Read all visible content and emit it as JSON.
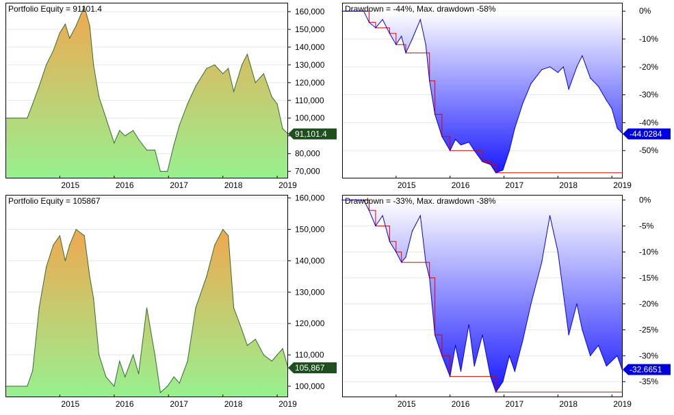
{
  "colors": {
    "equity_top": "#f0a850",
    "equity_bottom": "#98f090",
    "equity_line": "#2e6e2e",
    "equity_badge": "#1f4e1f",
    "drawdown_line": "#0000ee",
    "drawdown_fill_top": "#ffffff",
    "drawdown_fill_bottom": "#1a1aff",
    "drawdown_badge": "#0000dd",
    "maxdd_line": "#dd0000",
    "grid": "#e6e6e6"
  },
  "chart_data": [
    {
      "id": "eq1",
      "type": "area",
      "title": "Portfolio Equity = 91101.4",
      "ylim": [
        66000,
        165000
      ],
      "y_ticks": [
        70000,
        80000,
        90000,
        100000,
        110000,
        120000,
        130000,
        140000,
        150000,
        160000
      ],
      "y_tick_labels": [
        "70,000",
        "80,000",
        "90,000",
        "100,000",
        "110,000",
        "120,000",
        "130,000",
        "140,000",
        "150,000",
        "160,000"
      ],
      "x_ticks": [
        2015,
        2016,
        2017,
        2018,
        2019
      ],
      "x_tick_labels": [
        "2015",
        "2016",
        "2017",
        "2018",
        "2019"
      ],
      "xlim": [
        2014.0,
        2019.2
      ],
      "last_value_label": "91,101.4",
      "last_value": 91101.4,
      "x": [
        2014.0,
        2014.4,
        2014.5,
        2014.62,
        2014.75,
        2014.88,
        2015.0,
        2015.1,
        2015.18,
        2015.3,
        2015.45,
        2015.55,
        2015.62,
        2015.72,
        2015.85,
        2016.0,
        2016.1,
        2016.2,
        2016.35,
        2016.45,
        2016.6,
        2016.75,
        2016.85,
        2016.98,
        2017.1,
        2017.2,
        2017.35,
        2017.5,
        2017.7,
        2017.85,
        2018.0,
        2018.1,
        2018.2,
        2018.35,
        2018.45,
        2018.6,
        2018.75,
        2018.9,
        2019.0,
        2019.1,
        2019.2
      ],
      "y": [
        100000,
        100000,
        108000,
        118000,
        130000,
        138000,
        148000,
        153000,
        145000,
        152000,
        163000,
        152000,
        130000,
        112000,
        100000,
        86000,
        93000,
        90000,
        93000,
        88000,
        82000,
        82000,
        70000,
        70000,
        85000,
        96000,
        108000,
        118000,
        128000,
        130000,
        125000,
        128000,
        115000,
        130000,
        136000,
        120000,
        125000,
        112000,
        108000,
        94000,
        91101
      ]
    },
    {
      "id": "dd1",
      "type": "area",
      "title": "Drawdown = -44%, Max. drawdown -58%",
      "ylim": [
        -60,
        3
      ],
      "y_ticks": [
        0,
        -10,
        -20,
        -30,
        -40,
        -50
      ],
      "y_tick_labels": [
        "0%",
        "-10%",
        "-20%",
        "-30%",
        "-40%",
        "-50%"
      ],
      "x_ticks": [
        2015,
        2016,
        2017,
        2018,
        2019
      ],
      "x_tick_labels": [
        "2015",
        "2016",
        "2017",
        "2018",
        "2019"
      ],
      "xlim": [
        2014.0,
        2019.2
      ],
      "last_value_label": "-44.0284",
      "last_value": -44.0284,
      "x": [
        2014.0,
        2014.4,
        2014.5,
        2014.62,
        2014.75,
        2014.88,
        2015.0,
        2015.1,
        2015.18,
        2015.3,
        2015.45,
        2015.55,
        2015.62,
        2015.72,
        2015.85,
        2016.0,
        2016.1,
        2016.2,
        2016.35,
        2016.45,
        2016.6,
        2016.75,
        2016.85,
        2016.98,
        2017.1,
        2017.2,
        2017.35,
        2017.5,
        2017.7,
        2017.85,
        2018.0,
        2018.1,
        2018.2,
        2018.35,
        2018.45,
        2018.6,
        2018.75,
        2018.9,
        2019.0,
        2019.1,
        2019.2
      ],
      "y": [
        0,
        0,
        -4,
        -6,
        -3,
        -8,
        -12,
        -9,
        -15,
        -10,
        -3,
        -12,
        -25,
        -37,
        -45,
        -50,
        -46,
        -48,
        -47,
        -50,
        -54,
        -55,
        -58,
        -57,
        -50,
        -42,
        -33,
        -26,
        -21,
        -20,
        -22,
        -20,
        -28,
        -20,
        -16,
        -24,
        -27,
        -32,
        -35,
        -42,
        -44
      ]
    },
    {
      "id": "eq2",
      "type": "area",
      "title": "Portfolio Equity = 105867",
      "ylim": [
        96500,
        161000
      ],
      "y_ticks": [
        100000,
        110000,
        120000,
        130000,
        140000,
        150000,
        160000
      ],
      "y_tick_labels": [
        "100,000",
        "110,000",
        "120,000",
        "130,000",
        "140,000",
        "150,000",
        "160,000"
      ],
      "x_ticks": [
        2015,
        2016,
        2017,
        2018,
        2019
      ],
      "x_tick_labels": [
        "2015",
        "2016",
        "2017",
        "2018",
        "2019"
      ],
      "xlim": [
        2014.0,
        2019.2
      ],
      "last_value_label": "105,867",
      "last_value": 105867,
      "x": [
        2014.0,
        2014.4,
        2014.5,
        2014.62,
        2014.75,
        2014.88,
        2015.0,
        2015.1,
        2015.18,
        2015.3,
        2015.45,
        2015.55,
        2015.62,
        2015.72,
        2015.85,
        2016.0,
        2016.1,
        2016.2,
        2016.35,
        2016.45,
        2016.6,
        2016.75,
        2016.85,
        2016.98,
        2017.1,
        2017.2,
        2017.35,
        2017.5,
        2017.7,
        2017.85,
        2018.0,
        2018.1,
        2018.2,
        2018.35,
        2018.45,
        2018.6,
        2018.75,
        2018.9,
        2019.0,
        2019.1,
        2019.2
      ],
      "y": [
        100000,
        100000,
        105000,
        125000,
        138000,
        145000,
        148000,
        140000,
        145000,
        150000,
        148000,
        135000,
        128000,
        110000,
        103000,
        100000,
        108000,
        103000,
        110000,
        104000,
        125000,
        110000,
        98000,
        100000,
        103000,
        101000,
        108000,
        125000,
        135000,
        145000,
        150000,
        148000,
        125000,
        118000,
        113000,
        115000,
        110000,
        108000,
        110000,
        112000,
        105867
      ]
    },
    {
      "id": "dd2",
      "type": "area",
      "title": "Drawdown = -33%, Max. drawdown -38%",
      "ylim": [
        -38,
        1
      ],
      "y_ticks": [
        0,
        -5,
        -10,
        -15,
        -20,
        -25,
        -30,
        -35
      ],
      "y_tick_labels": [
        "0%",
        "-5%",
        "-10%",
        "-15%",
        "-20%",
        "-25%",
        "-30%",
        "-35%"
      ],
      "x_ticks": [
        2015,
        2016,
        2017,
        2018,
        2019
      ],
      "x_tick_labels": [
        "2015",
        "2016",
        "2017",
        "2018",
        "2019"
      ],
      "xlim": [
        2014.0,
        2019.2
      ],
      "last_value_label": "-32.6651",
      "last_value": -32.6651,
      "x": [
        2014.0,
        2014.4,
        2014.5,
        2014.62,
        2014.75,
        2014.88,
        2015.0,
        2015.1,
        2015.18,
        2015.3,
        2015.45,
        2015.55,
        2015.62,
        2015.72,
        2015.85,
        2016.0,
        2016.1,
        2016.2,
        2016.35,
        2016.45,
        2016.6,
        2016.75,
        2016.85,
        2016.98,
        2017.1,
        2017.2,
        2017.35,
        2017.5,
        2017.7,
        2017.85,
        2018.0,
        2018.1,
        2018.2,
        2018.35,
        2018.45,
        2018.6,
        2018.75,
        2018.9,
        2019.0,
        2019.1,
        2019.2
      ],
      "y": [
        0,
        0,
        -2,
        -5,
        -3,
        -8,
        -10,
        -12,
        -11,
        -6,
        -3,
        -12,
        -15,
        -26,
        -30,
        -34,
        -28,
        -33,
        -24,
        -32,
        -26,
        -34,
        -37,
        -35,
        -30,
        -33,
        -27,
        -20,
        -12,
        -3,
        -10,
        -18,
        -26,
        -20,
        -25,
        -30,
        -28,
        -32,
        -31,
        -30,
        -33
      ]
    }
  ]
}
